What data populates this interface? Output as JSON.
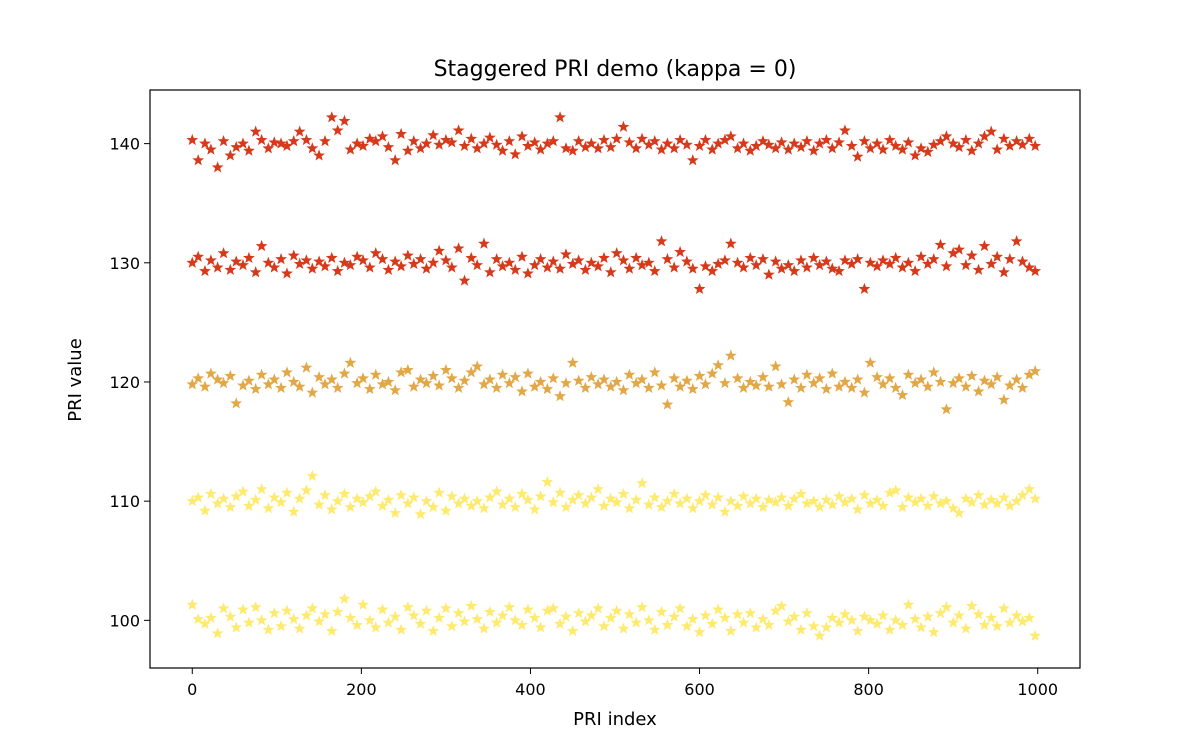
{
  "chart_data": {
    "type": "scatter",
    "title": "Staggered PRI demo (kappa = 0)",
    "xlabel": "PRI index",
    "ylabel": "PRI value",
    "xlim": [
      -50,
      1050
    ],
    "ylim": [
      96,
      144.5
    ],
    "xticks": [
      0,
      200,
      400,
      600,
      800,
      1000
    ],
    "yticks": [
      100,
      110,
      120,
      130,
      140
    ],
    "marker": "star",
    "grid": false,
    "legend": "none",
    "x": [
      0,
      7,
      15,
      22,
      30,
      37,
      45,
      52,
      60,
      67,
      75,
      82,
      90,
      97,
      105,
      112,
      120,
      127,
      135,
      142,
      150,
      157,
      165,
      172,
      180,
      187,
      195,
      202,
      210,
      217,
      225,
      232,
      240,
      247,
      255,
      262,
      270,
      277,
      285,
      292,
      300,
      307,
      315,
      322,
      330,
      337,
      345,
      352,
      360,
      367,
      375,
      382,
      390,
      397,
      405,
      412,
      420,
      427,
      435,
      442,
      450,
      457,
      465,
      472,
      480,
      487,
      495,
      502,
      510,
      517,
      525,
      532,
      540,
      547,
      555,
      562,
      570,
      577,
      585,
      592,
      600,
      607,
      615,
      622,
      630,
      637,
      645,
      652,
      660,
      667,
      675,
      682,
      690,
      697,
      705,
      712,
      720,
      727,
      735,
      742,
      750,
      757,
      765,
      772,
      780,
      787,
      795,
      802,
      810,
      817,
      825,
      832,
      840,
      847,
      855,
      862,
      870,
      877,
      885,
      892,
      900,
      907,
      915,
      922,
      930,
      937,
      945,
      952,
      960,
      967,
      975,
      982,
      990,
      997
    ],
    "series": [
      {
        "color": "#fdea6e",
        "values": [
          101.3,
          100.1,
          99.7,
          100.2,
          98.9,
          101.0,
          100.3,
          99.4,
          100.9,
          99.8,
          101.1,
          100.0,
          99.2,
          100.6,
          99.5,
          100.8,
          100.1,
          99.3,
          100.4,
          101.0,
          99.9,
          100.5,
          99.1,
          100.7,
          101.8,
          100.2,
          99.6,
          101.3,
          100.0,
          99.4,
          100.9,
          99.8,
          100.3,
          99.2,
          101.1,
          100.4,
          99.7,
          100.8,
          99.1,
          100.2,
          101.0,
          99.5,
          100.6,
          99.9,
          101.2,
          100.1,
          99.3,
          100.7,
          99.8,
          100.4,
          101.1,
          100.0,
          99.6,
          100.9,
          100.2,
          99.4,
          100.8,
          101.0,
          99.7,
          100.3,
          99.1,
          100.6,
          99.9,
          100.4,
          101.0,
          99.5,
          100.2,
          100.8,
          99.3,
          100.5,
          99.8,
          101.1,
          100.0,
          99.2,
          100.7,
          99.6,
          100.3,
          101.0,
          99.5,
          100.1,
          99.0,
          100.4,
          99.7,
          100.9,
          100.2,
          99.1,
          100.5,
          99.8,
          100.6,
          99.4,
          100.1,
          99.6,
          100.8,
          101.2,
          99.9,
          100.3,
          99.2,
          100.6,
          99.5,
          98.7,
          99.4,
          100.2,
          99.8,
          100.5,
          100.0,
          99.1,
          100.3,
          100.0,
          99.7,
          100.4,
          99.2,
          100.0,
          99.6,
          101.3,
          100.1,
          99.4,
          100.3,
          99.0,
          100.6,
          101.1,
          99.8,
          100.4,
          99.3,
          101.2,
          100.5,
          99.6,
          100.2,
          99.5,
          101.0,
          99.8,
          100.4,
          99.9,
          100.2,
          98.7
        ]
      },
      {
        "color": "#fdea6e",
        "values": [
          110.0,
          110.3,
          109.2,
          110.6,
          109.8,
          110.2,
          109.5,
          110.4,
          110.8,
          109.6,
          110.1,
          111.0,
          109.4,
          110.3,
          109.9,
          110.7,
          109.1,
          110.2,
          110.9,
          112.1,
          109.7,
          110.5,
          109.3,
          110.0,
          110.6,
          109.5,
          110.2,
          109.9,
          110.4,
          110.8,
          109.6,
          110.1,
          109.0,
          110.5,
          109.8,
          110.3,
          108.9,
          110.0,
          109.5,
          110.7,
          109.2,
          110.4,
          109.8,
          110.2,
          109.6,
          110.0,
          109.4,
          110.3,
          110.8,
          109.7,
          110.2,
          109.5,
          110.6,
          110.1,
          109.3,
          110.4,
          111.6,
          109.9,
          110.7,
          109.5,
          110.1,
          110.5,
          109.8,
          110.3,
          111.0,
          109.6,
          110.2,
          109.9,
          110.6,
          109.4,
          110.1,
          111.5,
          109.7,
          110.3,
          109.5,
          110.0,
          110.6,
          109.8,
          110.2,
          109.4,
          110.0,
          110.5,
          109.7,
          110.3,
          109.1,
          110.0,
          109.6,
          110.4,
          109.8,
          110.2,
          109.5,
          110.1,
          109.9,
          110.3,
          109.6,
          110.2,
          110.6,
          109.8,
          110.0,
          109.5,
          110.1,
          109.7,
          110.4,
          109.9,
          110.2,
          109.3,
          110.5,
          109.8,
          110.1,
          109.6,
          110.7,
          110.9,
          109.5,
          110.3,
          109.9,
          110.2,
          109.6,
          110.4,
          109.8,
          110.0,
          109.4,
          109.0,
          110.2,
          109.9,
          110.5,
          109.7,
          110.1,
          109.8,
          110.3,
          109.6,
          110.0,
          110.5,
          111.0,
          110.2
        ]
      },
      {
        "color": "#e2a847",
        "values": [
          119.8,
          120.3,
          119.6,
          120.7,
          120.2,
          119.9,
          120.5,
          118.2,
          119.7,
          120.1,
          119.4,
          120.6,
          119.8,
          120.2,
          119.5,
          120.8,
          120.0,
          119.6,
          121.2,
          119.1,
          120.4,
          119.8,
          120.2,
          119.5,
          120.7,
          121.6,
          119.9,
          120.3,
          119.4,
          120.6,
          119.8,
          120.0,
          119.3,
          120.8,
          121.0,
          119.6,
          120.2,
          119.9,
          120.5,
          119.7,
          121.0,
          120.3,
          119.5,
          120.1,
          120.8,
          121.3,
          119.8,
          120.2,
          119.5,
          120.6,
          119.9,
          120.4,
          119.2,
          120.7,
          119.6,
          120.0,
          119.4,
          120.3,
          118.8,
          119.9,
          121.6,
          120.1,
          119.5,
          120.4,
          119.8,
          120.2,
          119.6,
          120.0,
          119.3,
          120.6,
          119.9,
          120.2,
          119.5,
          120.8,
          119.7,
          118.1,
          120.3,
          119.6,
          120.1,
          119.4,
          120.5,
          119.8,
          120.7,
          121.4,
          119.9,
          122.2,
          120.3,
          119.5,
          120.0,
          119.7,
          120.4,
          119.6,
          121.3,
          119.8,
          118.3,
          120.2,
          119.5,
          120.6,
          119.9,
          120.3,
          119.4,
          120.7,
          119.6,
          120.0,
          119.5,
          120.2,
          119.1,
          121.6,
          120.4,
          119.8,
          120.3,
          119.5,
          118.9,
          120.6,
          119.9,
          120.2,
          119.6,
          120.8,
          120.0,
          117.7,
          119.9,
          120.3,
          119.6,
          120.5,
          119.2,
          120.1,
          119.8,
          120.4,
          118.5,
          119.7,
          120.2,
          119.5,
          120.6,
          120.9
        ]
      },
      {
        "color": "#d63a1a",
        "values": [
          130.0,
          130.5,
          129.3,
          130.2,
          129.6,
          130.8,
          129.4,
          130.1,
          129.8,
          130.4,
          129.2,
          131.4,
          130.0,
          129.6,
          130.3,
          129.1,
          130.6,
          129.9,
          130.2,
          129.5,
          130.1,
          129.7,
          130.4,
          129.3,
          130.0,
          129.8,
          130.5,
          130.2,
          129.6,
          130.8,
          130.3,
          129.4,
          130.1,
          129.7,
          130.6,
          129.9,
          130.3,
          129.5,
          130.0,
          131.0,
          130.2,
          129.6,
          131.2,
          128.5,
          130.4,
          129.8,
          131.6,
          129.2,
          130.3,
          129.7,
          130.0,
          129.4,
          130.5,
          129.1,
          129.8,
          130.3,
          129.6,
          130.1,
          129.5,
          130.7,
          129.9,
          130.2,
          129.4,
          130.0,
          129.7,
          130.4,
          129.2,
          130.8,
          130.2,
          129.5,
          130.4,
          129.8,
          130.0,
          129.3,
          131.8,
          130.3,
          129.6,
          130.9,
          130.1,
          129.5,
          127.8,
          129.7,
          129.3,
          129.9,
          130.2,
          131.6,
          130.0,
          129.6,
          130.4,
          129.8,
          130.3,
          129.0,
          130.1,
          129.5,
          129.8,
          129.3,
          130.2,
          129.6,
          130.4,
          129.8,
          130.1,
          129.5,
          129.3,
          130.2,
          129.9,
          130.3,
          127.8,
          130.0,
          129.7,
          130.2,
          129.9,
          130.4,
          129.6,
          130.0,
          129.3,
          130.5,
          129.9,
          130.3,
          131.5,
          129.7,
          130.8,
          131.1,
          129.8,
          130.6,
          129.4,
          131.4,
          129.9,
          130.5,
          129.2,
          130.3,
          131.8,
          130.1,
          129.6,
          129.3
        ]
      },
      {
        "color": "#d63a1a",
        "values": [
          140.3,
          138.6,
          140.0,
          139.5,
          138.0,
          140.2,
          139.0,
          139.7,
          140.0,
          139.4,
          141.0,
          140.3,
          139.6,
          140.1,
          140.0,
          139.8,
          140.2,
          141.0,
          140.3,
          139.6,
          139.0,
          140.2,
          142.2,
          141.1,
          141.9,
          139.5,
          140.0,
          139.8,
          140.4,
          140.2,
          140.6,
          139.7,
          138.6,
          140.8,
          139.4,
          140.2,
          139.6,
          140.0,
          140.7,
          139.9,
          140.3,
          140.1,
          141.1,
          139.8,
          140.4,
          139.6,
          140.0,
          140.5,
          139.9,
          139.4,
          140.2,
          139.1,
          140.6,
          139.8,
          140.1,
          139.5,
          140.0,
          140.2,
          142.2,
          139.6,
          139.4,
          140.2,
          139.7,
          140.0,
          139.6,
          140.3,
          139.7,
          140.4,
          141.4,
          140.1,
          139.6,
          140.4,
          139.9,
          140.2,
          139.5,
          140.0,
          139.6,
          140.3,
          139.9,
          138.6,
          139.8,
          140.3,
          139.5,
          140.0,
          140.3,
          140.6,
          139.6,
          140.0,
          139.4,
          139.8,
          140.2,
          139.9,
          139.6,
          140.1,
          139.5,
          140.0,
          139.7,
          140.2,
          139.4,
          140.0,
          140.3,
          139.6,
          140.1,
          141.1,
          139.8,
          138.9,
          140.2,
          139.6,
          140.0,
          139.5,
          140.3,
          139.8,
          139.5,
          140.1,
          139.0,
          139.6,
          139.3,
          139.9,
          140.2,
          140.6,
          140.0,
          139.7,
          140.3,
          139.4,
          140.0,
          140.6,
          141.0,
          139.5,
          140.4,
          139.8,
          140.2,
          139.9,
          140.4,
          139.8
        ]
      }
    ]
  }
}
